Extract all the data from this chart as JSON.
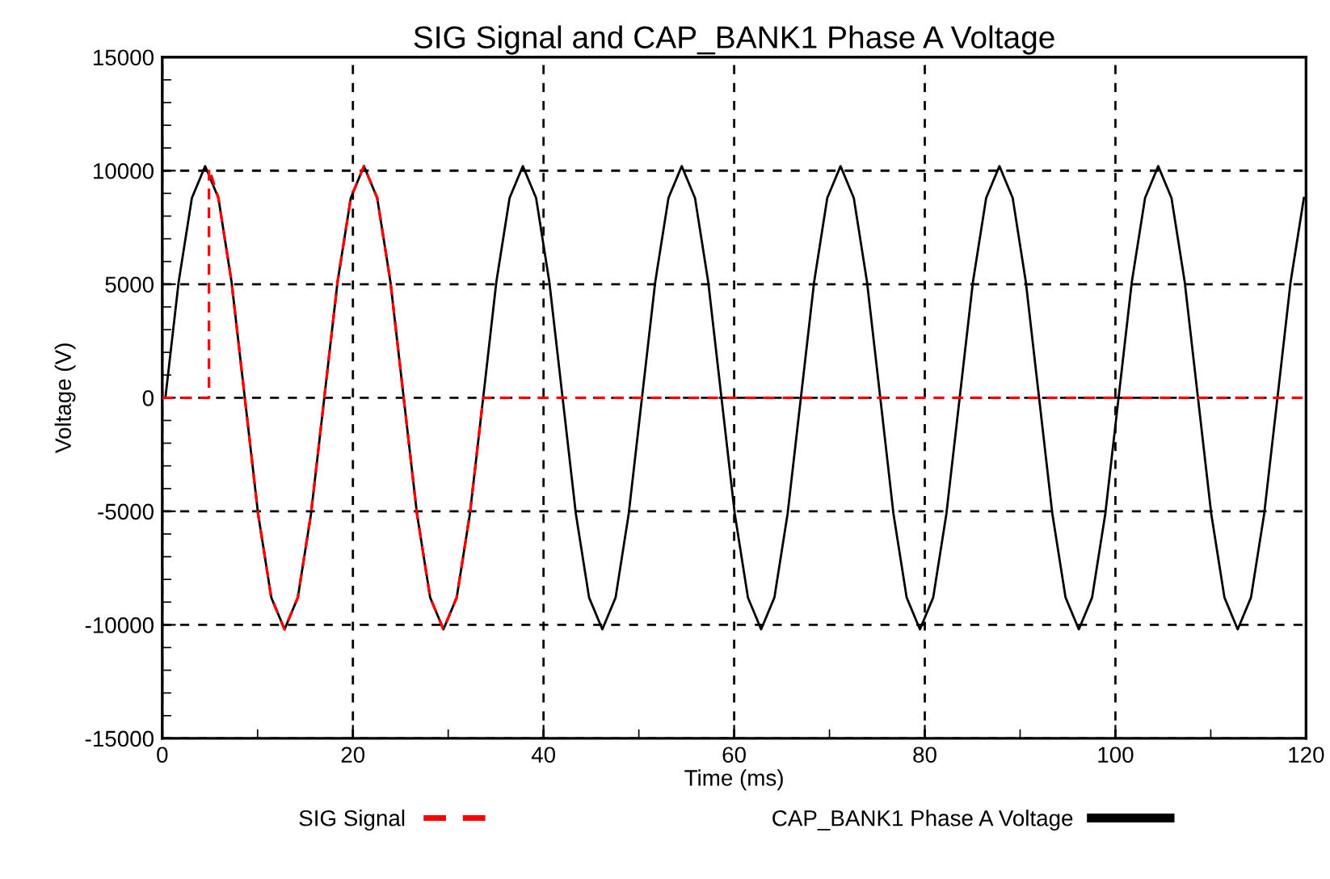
{
  "chart_data": {
    "type": "line",
    "title": "SIG Signal and CAP_BANK1 Phase A Voltage",
    "xlabel": "Time (ms)",
    "ylabel": "Voltage (V)",
    "xlim": [
      0,
      120
    ],
    "xticks": [
      0,
      20,
      40,
      60,
      80,
      100,
      120
    ],
    "ylim": [
      -15000,
      15000
    ],
    "yticks": [
      -15000,
      -10000,
      -5000,
      0,
      5000,
      10000,
      15000
    ],
    "grid": true,
    "legend": "bottom",
    "marker": "none",
    "series": [
      {
        "name": "SIG Signal",
        "color": "#ff0000",
        "line_style": "dashed",
        "x": [
          0,
          4.9,
          4.9,
          5.89,
          7.27,
          8.66,
          10.05,
          11.44,
          12.83,
          14.22,
          15.61,
          17.0,
          18.39,
          19.78,
          21.16,
          22.55,
          23.94,
          25.33,
          26.72,
          28.11,
          29.5,
          30.89,
          32.28,
          33.67,
          120
        ],
        "values": [
          0,
          0,
          10100,
          8800,
          5100,
          0,
          -5100,
          -8800,
          -10200,
          -8800,
          -5100,
          0,
          5100,
          8800,
          10200,
          8800,
          5100,
          0,
          -5100,
          -8800,
          -10200,
          -8800,
          -5100,
          0,
          0
        ]
      },
      {
        "name": "CAP_BANK1 Phase A Voltage",
        "color": "#000000",
        "line_style": "solid",
        "x": [
          0.33,
          1.72,
          3.11,
          4.5,
          5.89,
          7.27,
          8.66,
          10.05,
          11.44,
          12.83,
          14.22,
          15.61,
          17.0,
          18.39,
          19.78,
          21.16,
          22.55,
          23.94,
          25.33,
          26.72,
          28.11,
          29.5,
          30.89,
          32.28,
          33.67,
          35.05,
          36.44,
          37.83,
          39.22,
          40.61,
          42.0,
          43.39,
          44.78,
          46.17,
          47.56,
          48.94,
          50.33,
          51.72,
          53.11,
          54.5,
          55.89,
          57.28,
          58.67,
          60.06,
          61.45,
          62.83,
          64.22,
          65.61,
          67.0,
          68.39,
          69.77,
          71.16,
          72.55,
          73.94,
          75.33,
          76.71,
          78.1,
          79.49,
          80.88,
          82.27,
          83.66,
          85.05,
          86.44,
          87.83,
          89.22,
          90.6,
          91.99,
          93.38,
          94.77,
          96.16,
          97.55,
          98.94,
          100.33,
          101.72,
          103.11,
          104.49,
          105.88,
          107.27,
          108.66,
          110.05,
          111.44,
          112.83,
          114.22,
          115.61,
          117.0,
          118.38,
          119.77
        ],
        "values": [
          0,
          5100,
          8800,
          10200,
          8800,
          5100,
          0,
          -5100,
          -8800,
          -10200,
          -8800,
          -5100,
          0,
          5100,
          8800,
          10200,
          8800,
          5100,
          0,
          -5100,
          -8800,
          -10200,
          -8800,
          -5100,
          0,
          5100,
          8800,
          10200,
          8800,
          5100,
          0,
          -5100,
          -8800,
          -10200,
          -8800,
          -5100,
          0,
          5100,
          8800,
          10200,
          8800,
          5100,
          0,
          -5100,
          -8800,
          -10200,
          -8800,
          -5100,
          0,
          5100,
          8800,
          10200,
          8800,
          5100,
          0,
          -5100,
          -8800,
          -10200,
          -8800,
          -5100,
          0,
          5100,
          8800,
          10200,
          8800,
          5100,
          0,
          -5100,
          -8800,
          -10200,
          -8800,
          -5100,
          0,
          5100,
          8800,
          10200,
          8800,
          5100,
          0,
          -5100,
          -8800,
          -10200,
          -8800,
          -5100,
          0,
          5100,
          8800
        ]
      }
    ]
  }
}
